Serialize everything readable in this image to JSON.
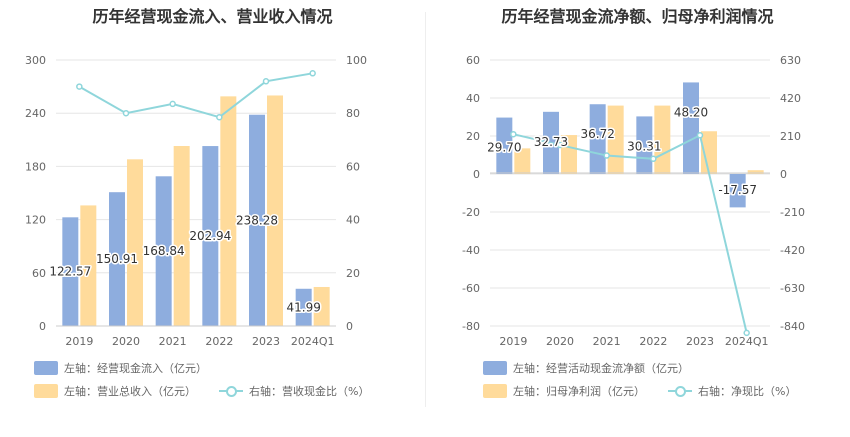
{
  "colors": {
    "blue": "#8eadde",
    "orange": "#ffdb9b",
    "line": "#8fd6db",
    "grid": "#e6e6e6",
    "axis": "#cccccc",
    "tick": "#666666"
  },
  "left": {
    "title": "历年经营现金流入、营业收入情况",
    "legend": {
      "bar1": "左轴：经营现金流入（亿元）",
      "bar2": "左轴：营业总收入（亿元）",
      "line": "右轴：营收现金比（%）"
    }
  },
  "right": {
    "title": "历年经营现金流净额、归母净利润情况",
    "legend": {
      "bar1": "左轴：经营活动现金流净额（亿元）",
      "bar2": "左轴：归母净利润（亿元）",
      "line": "右轴：净现比（%）"
    }
  },
  "chart_data": [
    {
      "type": "bar",
      "title": "历年经营现金流入、营业收入情况",
      "categories": [
        "2019",
        "2020",
        "2021",
        "2022",
        "2023",
        "2024Q1"
      ],
      "ylim": [
        0,
        300
      ],
      "yticks": [
        0,
        60,
        120,
        180,
        240,
        300
      ],
      "y2lim": [
        0,
        100
      ],
      "y2ticks": [
        0,
        20,
        40,
        60,
        80,
        100
      ],
      "series": [
        {
          "name": "左轴：经营现金流入（亿元）",
          "axis": "left",
          "kind": "bar",
          "values": [
            122.57,
            150.91,
            168.84,
            202.94,
            238.28,
            41.99
          ],
          "labels": [
            "122.57",
            "150.91",
            "168.84",
            "202.94",
            "238.28",
            "41.99"
          ]
        },
        {
          "name": "左轴：营业总收入（亿元）",
          "axis": "left",
          "kind": "bar",
          "values": [
            136,
            188,
            203,
            259,
            260,
            44
          ]
        },
        {
          "name": "右轴：营收现金比（%）",
          "axis": "right",
          "kind": "line",
          "values": [
            90,
            80,
            83.5,
            78.5,
            92,
            95
          ]
        }
      ],
      "grid": true,
      "legend_position": "bottom"
    },
    {
      "type": "bar",
      "title": "历年经营现金流净额、归母净利润情况",
      "categories": [
        "2019",
        "2020",
        "2021",
        "2022",
        "2023",
        "2024Q1"
      ],
      "ylim": [
        -80,
        60
      ],
      "yticks": [
        -80,
        -60,
        -40,
        -20,
        0,
        20,
        40,
        60
      ],
      "y2lim": [
        -840,
        630
      ],
      "y2ticks": [
        -840,
        -630,
        -420,
        -210,
        0,
        210,
        420,
        630
      ],
      "series": [
        {
          "name": "左轴：经营活动现金流净额（亿元）",
          "axis": "left",
          "kind": "bar",
          "values": [
            29.7,
            32.73,
            36.72,
            30.31,
            48.2,
            -17.57
          ],
          "labels": [
            "29.70",
            "32.73",
            "36.72",
            "30.31",
            "48.20",
            "-17.57"
          ]
        },
        {
          "name": "左轴：归母净利润（亿元）",
          "axis": "left",
          "kind": "bar",
          "values": [
            13.5,
            20.5,
            36,
            36,
            22.5,
            2
          ]
        },
        {
          "name": "右轴：净现比（%）",
          "axis": "right",
          "kind": "line",
          "values": [
            220,
            160,
            102,
            84,
            214,
            -878
          ]
        }
      ],
      "grid": true,
      "legend_position": "bottom"
    }
  ]
}
